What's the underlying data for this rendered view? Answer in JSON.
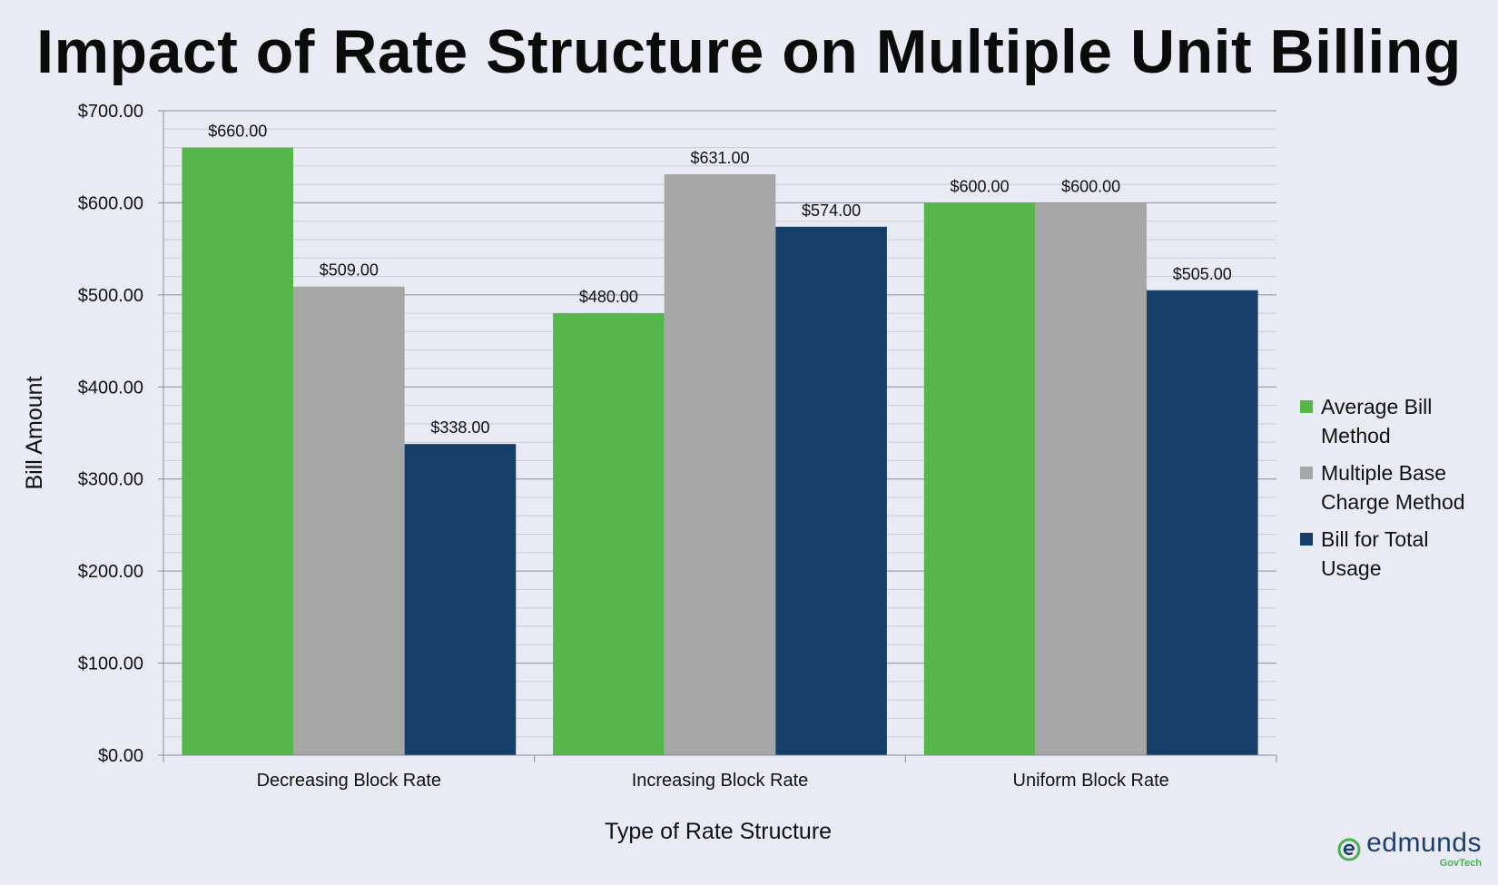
{
  "chart_data": {
    "type": "bar",
    "title": "Impact of Rate Structure on Multiple Unit Billing",
    "xlabel": "Type of Rate Structure",
    "ylabel": "Bill Amount",
    "ylim": [
      0,
      700
    ],
    "y_ticks": [
      "$0.00",
      "$100.00",
      "$200.00",
      "$300.00",
      "$400.00",
      "$500.00",
      "$600.00",
      "$700.00"
    ],
    "y_tick_values": [
      0,
      100,
      200,
      300,
      400,
      500,
      600,
      700
    ],
    "categories": [
      "Decreasing Block Rate",
      "Increasing Block Rate",
      "Uniform Block Rate"
    ],
    "series": [
      {
        "name": "Average Bill Method",
        "color": "#55b74a",
        "values": [
          660,
          480,
          600
        ],
        "labels": [
          "$660.00",
          "$480.00",
          "$600.00"
        ]
      },
      {
        "name": "Multiple Base Charge Method",
        "color": "#a6a6a6",
        "values": [
          509,
          631,
          600
        ],
        "labels": [
          "$509.00",
          "$631.00",
          "$600.00"
        ]
      },
      {
        "name": "Bill for Total Usage",
        "color": "#163e6a",
        "values": [
          338,
          574,
          505
        ],
        "labels": [
          "$338.00",
          "$574.00",
          "$505.00"
        ]
      }
    ],
    "legend_lines": [
      [
        "Average Bill",
        "Method"
      ],
      [
        "Multiple Base",
        "Charge Method"
      ],
      [
        "Bill for Total",
        "Usage"
      ]
    ],
    "grid": true,
    "legend_position": "right"
  },
  "logo": {
    "name": "edmunds",
    "sub": "GovTech",
    "icon": "edmunds-e-icon"
  }
}
